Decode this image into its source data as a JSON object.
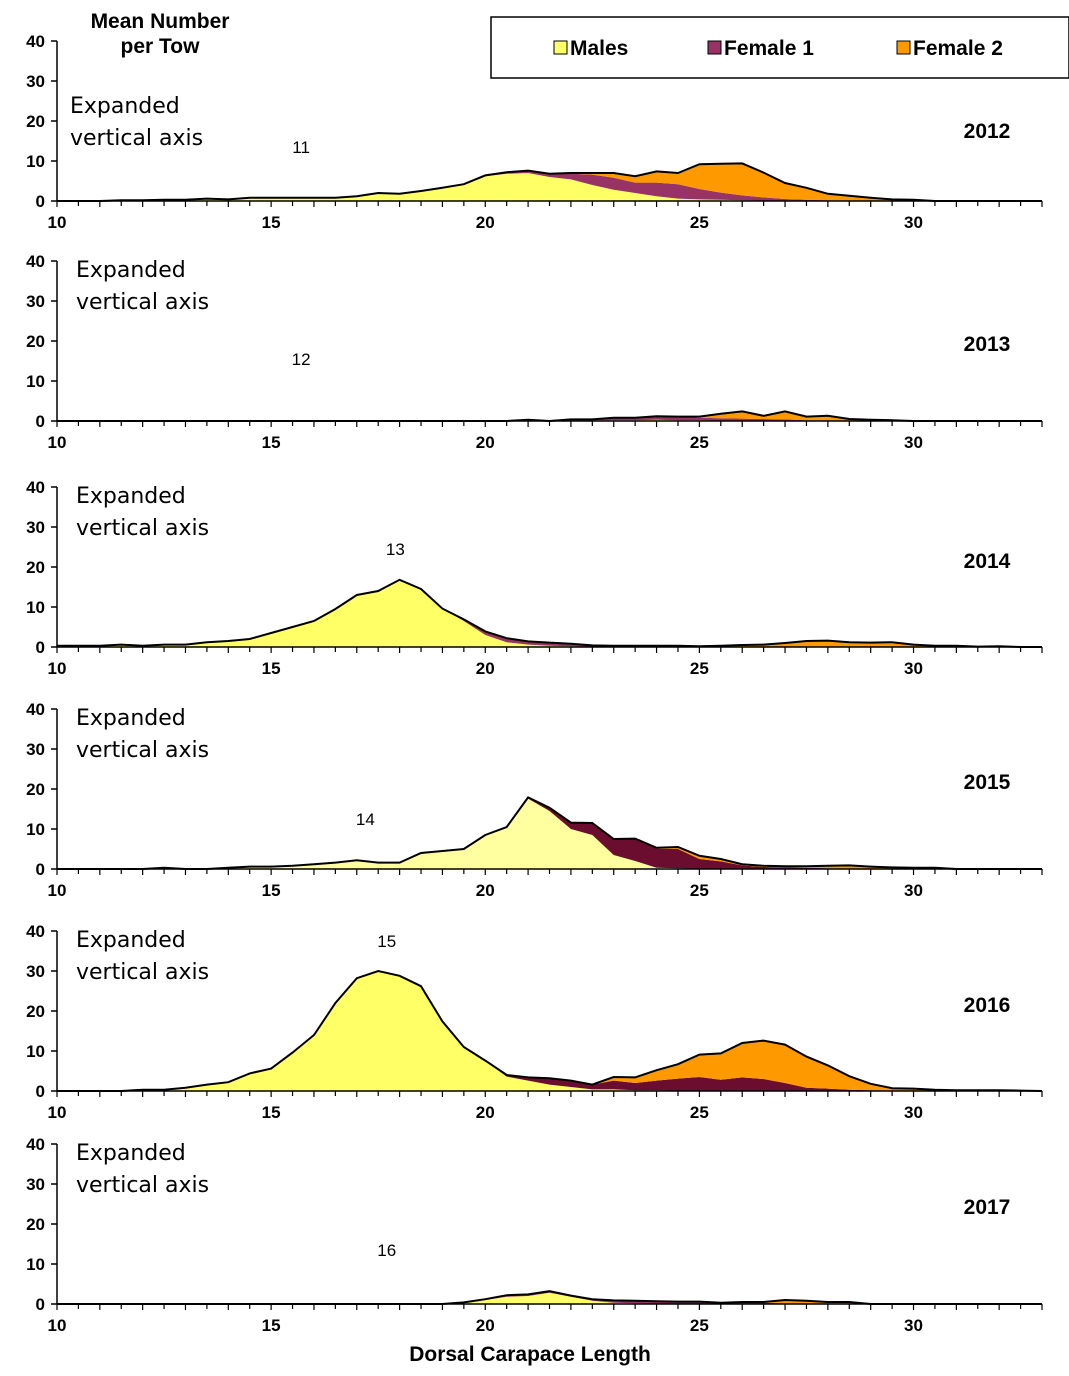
{
  "colors": {
    "males": "#ffff66",
    "males_light": "#ffffa0",
    "female1": "#993366",
    "female1_dark": "#6b0d2e",
    "female2": "#ff9900",
    "outline": "#000000"
  },
  "chart_data": {
    "type": "area",
    "ylabel": "Mean Number per Tow",
    "xlabel": "Dorsal Carapace Length",
    "xlim": [
      10,
      33
    ],
    "ylim": [
      0,
      40
    ],
    "xticks": [
      10,
      15,
      20,
      25,
      30
    ],
    "yticks": [
      0,
      10,
      20,
      30,
      40
    ],
    "legend": {
      "position": "top-right",
      "entries": [
        "Males",
        "Female 1",
        "Female 2"
      ]
    },
    "x": [
      10,
      10.5,
      11,
      11.5,
      12,
      12.5,
      13,
      13.5,
      14,
      14.5,
      15,
      15.5,
      16,
      16.5,
      17,
      17.5,
      18,
      18.5,
      19,
      19.5,
      20,
      20.5,
      21,
      21.5,
      22,
      22.5,
      23,
      23.5,
      24,
      24.5,
      25,
      25.5,
      26,
      26.5,
      27,
      27.5,
      28,
      28.5,
      29,
      29.5,
      30,
      30.5,
      31,
      31.5,
      32,
      32.5,
      33
    ],
    "panels": [
      {
        "year": "2012",
        "note": "Expanded vertical axis",
        "number": "11",
        "number_x": 15.7,
        "number_y": 12,
        "series": [
          {
            "name": "Males",
            "values": [
              0,
              0,
              0,
              0.2,
              0.2,
              0.3,
              0.3,
              0.6,
              0.4,
              0.8,
              0.8,
              0.8,
              0.8,
              0.8,
              1.2,
              2.0,
              1.8,
              2.5,
              3.2,
              4.0,
              6.2,
              6.8,
              7.0,
              6.0,
              5.4,
              4.0,
              2.8,
              2.0,
              1.2,
              0.6,
              0.4,
              0.3,
              0.2,
              0.1,
              0.1,
              0,
              0,
              0,
              0,
              0,
              0,
              0,
              0,
              0,
              0,
              0,
              0
            ]
          },
          {
            "name": "Female 1",
            "values": [
              0,
              0,
              0,
              0,
              0,
              0,
              0,
              0,
              0,
              0,
              0,
              0,
              0,
              0,
              0,
              0,
              0,
              0,
              0.1,
              0.2,
              0.2,
              0.4,
              0.6,
              0.8,
              1.4,
              2.6,
              3.0,
              2.6,
              3.4,
              3.6,
              2.6,
              1.8,
              1.2,
              0.8,
              0.4,
              0.3,
              0.2,
              0.1,
              0,
              0,
              0,
              0,
              0,
              0,
              0,
              0,
              0
            ]
          },
          {
            "name": "Female 2",
            "values": [
              0,
              0,
              0,
              0,
              0,
              0,
              0,
              0,
              0,
              0,
              0,
              0,
              0,
              0,
              0,
              0,
              0,
              0,
              0,
              0,
              0,
              0,
              0,
              0,
              0.2,
              0.4,
              1.2,
              1.6,
              2.8,
              2.8,
              6.2,
              7.2,
              8.0,
              6.2,
              4.0,
              3.0,
              1.6,
              1.2,
              0.8,
              0.4,
              0.3,
              0,
              0,
              0,
              0,
              0,
              0
            ]
          }
        ]
      },
      {
        "year": "2013",
        "note": "Expanded vertical axis",
        "number": "12",
        "number_x": 15.7,
        "number_y": 14,
        "series": [
          {
            "name": "Males",
            "values": [
              0,
              0,
              0,
              0,
              0,
              0,
              0,
              0,
              0,
              0,
              0,
              0,
              0,
              0,
              0,
              0,
              0,
              0,
              0,
              0,
              0,
              0,
              0.2,
              0,
              0.2,
              0.2,
              0.2,
              0.2,
              0.3,
              0.2,
              0.2,
              0.1,
              0.1,
              0.1,
              0.1,
              0,
              0,
              0,
              0,
              0,
              0,
              0,
              0,
              0,
              0,
              0,
              0
            ]
          },
          {
            "name": "Female 1",
            "values": [
              0,
              0,
              0,
              0,
              0,
              0,
              0,
              0,
              0,
              0,
              0,
              0,
              0,
              0,
              0,
              0,
              0,
              0,
              0,
              0,
              0,
              0,
              0.1,
              0,
              0.2,
              0.2,
              0.6,
              0.6,
              0.9,
              0.9,
              0.6,
              0.6,
              0.5,
              0.4,
              0.3,
              0.2,
              0.2,
              0.1,
              0.1,
              0,
              0,
              0,
              0,
              0,
              0,
              0,
              0
            ]
          },
          {
            "name": "Female 2",
            "values": [
              0,
              0,
              0,
              0,
              0,
              0,
              0,
              0,
              0,
              0,
              0,
              0,
              0,
              0,
              0,
              0,
              0,
              0,
              0,
              0,
              0,
              0,
              0,
              0,
              0,
              0,
              0,
              0,
              0,
              0,
              0.3,
              1.1,
              1.8,
              0.8,
              2.0,
              0.9,
              1.1,
              0.4,
              0.2,
              0.2,
              0,
              0,
              0,
              0,
              0,
              0,
              0
            ]
          }
        ]
      },
      {
        "year": "2014",
        "note": "Expanded vertical axis",
        "number": "13",
        "number_x": 17.9,
        "number_y": 23,
        "series": [
          {
            "name": "Males",
            "values": [
              0.3,
              0.3,
              0.3,
              0.6,
              0.3,
              0.6,
              0.6,
              1.2,
              1.5,
              2.0,
              3.5,
              5.0,
              6.5,
              9.5,
              13.0,
              14.0,
              16.8,
              14.5,
              9.6,
              6.5,
              3.0,
              1.2,
              0.6,
              0.3,
              0.2,
              0.1,
              0.1,
              0.1,
              0.1,
              0.1,
              0.1,
              0,
              0,
              0,
              0,
              0,
              0,
              0,
              0,
              0,
              0,
              0,
              0,
              0,
              0,
              0,
              0
            ]
          },
          {
            "name": "Female 1",
            "values": [
              0,
              0,
              0,
              0,
              0,
              0,
              0,
              0,
              0,
              0,
              0,
              0,
              0,
              0,
              0,
              0,
              0,
              0,
              0,
              0.4,
              0.9,
              1.0,
              0.8,
              0.8,
              0.6,
              0.3,
              0.2,
              0.2,
              0.2,
              0.2,
              0.1,
              0.1,
              0.1,
              0.1,
              0,
              0,
              0,
              0,
              0,
              0,
              0,
              0,
              0,
              0,
              0,
              0,
              0
            ]
          },
          {
            "name": "Female 2",
            "values": [
              0,
              0,
              0,
              0,
              0,
              0,
              0,
              0,
              0,
              0,
              0,
              0,
              0,
              0,
              0,
              0,
              0,
              0,
              0,
              0,
              0,
              0,
              0,
              0,
              0,
              0,
              0,
              0,
              0,
              0,
              0,
              0.2,
              0.4,
              0.5,
              1.0,
              1.5,
              1.6,
              1.2,
              1.1,
              1.2,
              0.6,
              0.3,
              0.3,
              0.1,
              0.2,
              0,
              0
            ]
          }
        ]
      },
      {
        "year": "2015",
        "note": "Expanded vertical axis",
        "number": "14",
        "number_x": 17.2,
        "number_y": 11,
        "series": [
          {
            "name": "Males",
            "values": [
              0,
              0,
              0,
              0,
              0,
              0.3,
              0,
              0,
              0.3,
              0.6,
              0.6,
              0.8,
              1.2,
              1.6,
              2.2,
              1.6,
              1.6,
              4.0,
              4.5,
              5.0,
              8.5,
              10.5,
              17.6,
              14.5,
              10.0,
              8.5,
              3.5,
              2.0,
              0.3,
              0.2,
              0.1,
              0.1,
              0.1,
              0,
              0,
              0,
              0,
              0,
              0,
              0,
              0,
              0,
              0,
              0,
              0,
              0,
              0
            ]
          },
          {
            "name": "Female 1",
            "values": [
              0,
              0,
              0,
              0,
              0,
              0,
              0,
              0,
              0,
              0,
              0,
              0,
              0,
              0,
              0,
              0,
              0,
              0,
              0,
              0,
              0,
              0,
              0.3,
              0.8,
              1.6,
              3.0,
              4.0,
              5.6,
              4.8,
              4.8,
              2.4,
              1.8,
              0.8,
              0.5,
              0.4,
              0.3,
              0.2,
              0.1,
              0,
              0,
              0,
              0,
              0,
              0,
              0,
              0,
              0
            ]
          },
          {
            "name": "Female 2",
            "values": [
              0,
              0,
              0,
              0,
              0,
              0,
              0,
              0,
              0,
              0,
              0,
              0,
              0,
              0,
              0,
              0,
              0,
              0,
              0,
              0,
              0,
              0,
              0,
              0,
              0,
              0,
              0,
              0,
              0.2,
              0.5,
              0.8,
              0.6,
              0.3,
              0.3,
              0.3,
              0.4,
              0.6,
              0.8,
              0.6,
              0.4,
              0.3,
              0.3,
              0,
              0,
              0,
              0,
              0
            ]
          }
        ]
      },
      {
        "year": "2016",
        "note": "Expanded vertical axis",
        "number": "15",
        "number_x": 17.7,
        "number_y": 36,
        "series": [
          {
            "name": "Males",
            "values": [
              0,
              0,
              0,
              0,
              0.3,
              0.3,
              0.8,
              1.6,
              2.2,
              4.4,
              5.6,
              9.6,
              14.0,
              22.0,
              28.2,
              30.0,
              28.8,
              26.2,
              17.4,
              11.0,
              7.6,
              3.6,
              2.6,
              1.6,
              1.0,
              0.4,
              0.4,
              0.2,
              0.2,
              0.1,
              0.1,
              0,
              0,
              0,
              0,
              0,
              0,
              0,
              0,
              0,
              0,
              0,
              0,
              0,
              0,
              0,
              0
            ]
          },
          {
            "name": "Female 1",
            "values": [
              0,
              0,
              0,
              0,
              0,
              0,
              0,
              0,
              0,
              0,
              0,
              0,
              0,
              0,
              0,
              0,
              0,
              0,
              0,
              0,
              0,
              0.4,
              0.8,
              1.6,
              1.6,
              1.2,
              2.2,
              1.8,
              2.4,
              3.0,
              3.4,
              2.8,
              3.4,
              3.0,
              2.0,
              0.8,
              0.6,
              0.3,
              0.2,
              0.1,
              0.1,
              0,
              0,
              0,
              0,
              0,
              0
            ]
          },
          {
            "name": "Female 2",
            "values": [
              0,
              0,
              0,
              0,
              0,
              0,
              0,
              0,
              0,
              0,
              0,
              0,
              0,
              0,
              0,
              0,
              0,
              0,
              0,
              0,
              0,
              0,
              0,
              0,
              0,
              0,
              0.9,
              1.4,
              2.6,
              3.6,
              5.6,
              6.6,
              8.6,
              9.6,
              9.6,
              7.8,
              5.8,
              3.4,
              1.6,
              0.6,
              0.5,
              0.3,
              0.2,
              0.2,
              0.2,
              0.1,
              0
            ]
          }
        ]
      },
      {
        "year": "2017",
        "note": "Expanded vertical axis",
        "number": "16",
        "number_x": 17.7,
        "number_y": 12,
        "series": [
          {
            "name": "Males",
            "values": [
              0,
              0,
              0,
              0,
              0,
              0,
              0,
              0,
              0,
              0,
              0,
              0,
              0,
              0,
              0,
              0,
              0,
              0,
              0,
              0.2,
              1.0,
              1.8,
              2.0,
              2.8,
              1.8,
              0.8,
              0.3,
              0.2,
              0.1,
              0.1,
              0.1,
              0,
              0,
              0,
              0,
              0,
              0,
              0,
              0,
              0,
              0,
              0,
              0,
              0,
              0,
              0,
              0
            ]
          },
          {
            "name": "Female 1",
            "values": [
              0,
              0,
              0,
              0,
              0,
              0,
              0,
              0,
              0,
              0,
              0,
              0,
              0,
              0,
              0,
              0,
              0,
              0,
              0,
              0.2,
              0.2,
              0.4,
              0.4,
              0.4,
              0.3,
              0.4,
              0.6,
              0.6,
              0.6,
              0.5,
              0.5,
              0.3,
              0.3,
              0.3,
              0.2,
              0.2,
              0.2,
              0.1,
              0,
              0,
              0,
              0,
              0,
              0,
              0,
              0,
              0
            ]
          },
          {
            "name": "Female 2",
            "values": [
              0,
              0,
              0,
              0,
              0,
              0,
              0,
              0,
              0,
              0,
              0,
              0,
              0,
              0,
              0,
              0,
              0,
              0,
              0,
              0,
              0,
              0,
              0,
              0,
              0,
              0,
              0,
              0,
              0,
              0,
              0,
              0,
              0.2,
              0.2,
              0.8,
              0.6,
              0.3,
              0.4,
              0,
              0,
              0,
              0,
              0,
              0,
              0,
              0,
              0
            ]
          }
        ]
      }
    ]
  }
}
